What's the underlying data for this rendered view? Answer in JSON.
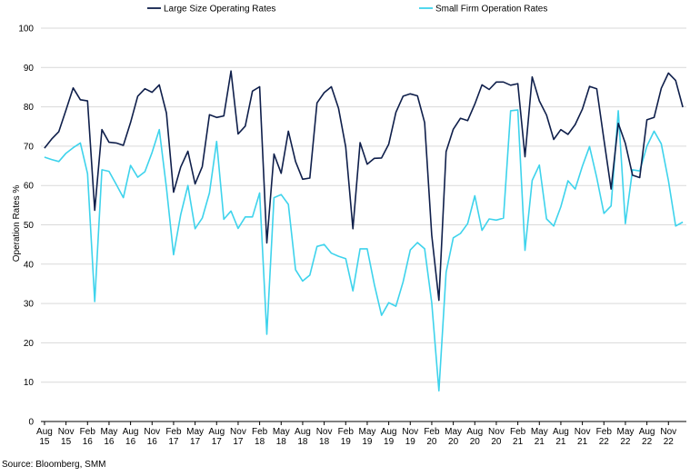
{
  "source": "Source: Bloomberg, SMM",
  "chart_data": {
    "type": "line",
    "title": "",
    "xlabel": "",
    "ylabel": "Operation Rates %",
    "ylim": [
      0,
      100
    ],
    "yticks": [
      0,
      10,
      20,
      30,
      40,
      50,
      60,
      70,
      80,
      90,
      100
    ],
    "grid": "horizontal",
    "legend": "top",
    "x_start": "Aug 15",
    "x_end": "Dec 22",
    "x_tick_labels": [
      [
        "Aug",
        "15"
      ],
      [
        "Nov",
        "15"
      ],
      [
        "Feb",
        "16"
      ],
      [
        "May",
        "16"
      ],
      [
        "Aug",
        "16"
      ],
      [
        "Nov",
        "16"
      ],
      [
        "Feb",
        "17"
      ],
      [
        "May",
        "17"
      ],
      [
        "Aug",
        "17"
      ],
      [
        "Nov",
        "17"
      ],
      [
        "Feb",
        "18"
      ],
      [
        "May",
        "18"
      ],
      [
        "Aug",
        "18"
      ],
      [
        "Nov",
        "18"
      ],
      [
        "Feb",
        "19"
      ],
      [
        "May",
        "19"
      ],
      [
        "Aug",
        "19"
      ],
      [
        "Nov",
        "19"
      ],
      [
        "Feb",
        "20"
      ],
      [
        "May",
        "20"
      ],
      [
        "Aug",
        "20"
      ],
      [
        "Nov",
        "20"
      ],
      [
        "Feb",
        "21"
      ],
      [
        "May",
        "21"
      ],
      [
        "Aug",
        "21"
      ],
      [
        "Nov",
        "21"
      ],
      [
        "Feb",
        "22"
      ],
      [
        "May",
        "22"
      ],
      [
        "Aug",
        "22"
      ],
      [
        "Nov",
        "22"
      ]
    ],
    "series": [
      {
        "name": "Large Size Operating Rates",
        "color": "#0f1f4b",
        "values": [
          69.5,
          71.8,
          73.7,
          79.2,
          84.8,
          81.8,
          81.5,
          53.7,
          74.2,
          71.0,
          70.8,
          70.2,
          76.0,
          82.7,
          84.6,
          83.7,
          85.6,
          78.4,
          58.3,
          64.7,
          68.7,
          60.4,
          64.8,
          78.0,
          77.3,
          77.7,
          89.1,
          73.1,
          75.1,
          84.0,
          85.1,
          45.4,
          68.0,
          63.1,
          73.8,
          66.1,
          61.6,
          61.9,
          81.0,
          83.6,
          85.1,
          79.6,
          69.8,
          49.0,
          70.9,
          65.4,
          66.9,
          67.0,
          70.5,
          78.6,
          82.7,
          83.3,
          82.8,
          76.0,
          47.4,
          30.8,
          68.6,
          74.3,
          77.1,
          76.5,
          80.7,
          85.6,
          84.4,
          86.3,
          86.3,
          85.5,
          85.9,
          67.3,
          87.6,
          81.5,
          77.9,
          71.7,
          74.2,
          73.0,
          75.5,
          79.4,
          85.2,
          84.6,
          71.7,
          59.1,
          75.8,
          70.7,
          62.6,
          62.0,
          76.7,
          77.3,
          84.7,
          88.6,
          86.7,
          79.9
        ]
      },
      {
        "name": "Small Firm Operation Rates",
        "color": "#3ed3ec",
        "values": [
          67.2,
          66.6,
          66.1,
          68.2,
          69.6,
          70.8,
          63.0,
          30.5,
          64.0,
          63.6,
          60.3,
          56.9,
          65.1,
          62.1,
          63.5,
          68.4,
          74.2,
          59.4,
          42.4,
          52.6,
          60.0,
          49.0,
          51.7,
          58.1,
          71.2,
          51.4,
          53.5,
          49.1,
          52.0,
          52.0,
          58.1,
          22.2,
          56.9,
          57.7,
          55.2,
          38.6,
          35.7,
          37.2,
          44.5,
          45.0,
          42.8,
          42.0,
          41.4,
          33.2,
          43.9,
          43.9,
          34.8,
          27.0,
          30.2,
          29.3,
          35.5,
          43.6,
          45.5,
          43.9,
          30.2,
          7.8,
          37.9,
          46.7,
          47.8,
          50.3,
          57.4,
          48.6,
          51.5,
          51.2,
          51.7,
          79.0,
          79.2,
          43.5,
          61.3,
          65.2,
          51.5,
          49.7,
          54.6,
          61.2,
          59.1,
          64.9,
          69.9,
          62.0,
          52.9,
          54.8,
          79.0,
          50.3,
          64.0,
          63.7,
          70.0,
          73.8,
          70.6,
          61.2,
          49.7,
          50.7
        ]
      }
    ]
  }
}
